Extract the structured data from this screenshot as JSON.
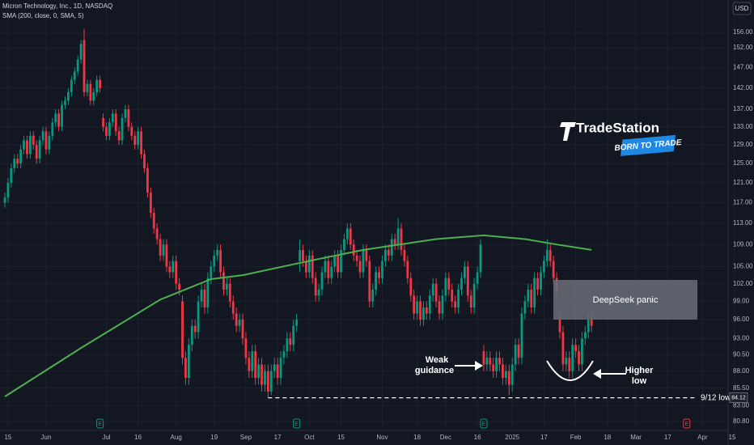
{
  "chart_data": {
    "type": "candlestick",
    "title": "Micron Technology, Inc., 1D, NASDAQ",
    "subtitle": "SMA (200, close, 0, SMA, 5)",
    "currency": "USD",
    "log_scale": true,
    "grid": true,
    "up_color": "#089981",
    "down_color": "#f23645",
    "ylim": [
      79.6,
      164.8
    ],
    "yticks": [
      {
        "value": 156,
        "label": "156.00"
      },
      {
        "value": 152,
        "label": "152.00"
      },
      {
        "value": 147,
        "label": "147.00"
      },
      {
        "value": 142,
        "label": "142.00"
      },
      {
        "value": 137,
        "label": "137.00"
      },
      {
        "value": 133,
        "label": "133.00"
      },
      {
        "value": 129,
        "label": "129.00"
      },
      {
        "value": 125,
        "label": "125.00"
      },
      {
        "value": 121,
        "label": "121.00"
      },
      {
        "value": 117,
        "label": "117.00"
      },
      {
        "value": 113,
        "label": "113.00"
      },
      {
        "value": 109,
        "label": "109.00"
      },
      {
        "value": 105,
        "label": "105.00"
      },
      {
        "value": 102,
        "label": "102.00"
      },
      {
        "value": 99,
        "label": "99.00"
      },
      {
        "value": 96,
        "label": "96.00"
      },
      {
        "value": 93,
        "label": "93.00"
      },
      {
        "value": 90.5,
        "label": "90.50"
      },
      {
        "value": 88,
        "label": "88.00"
      },
      {
        "value": 85.5,
        "label": "85.50"
      },
      {
        "value": 83,
        "label": "83.00"
      },
      {
        "value": 80.8,
        "label": "80.80"
      }
    ],
    "xlim": [
      -1.53,
      228.06
    ],
    "xticks": [
      {
        "value": 1,
        "label": "15"
      },
      {
        "value": 13,
        "label": "Jun"
      },
      {
        "value": 32,
        "label": "Jul"
      },
      {
        "value": 42,
        "label": "16"
      },
      {
        "value": 54,
        "label": "Aug"
      },
      {
        "value": 66,
        "label": "19"
      },
      {
        "value": 76,
        "label": "Sep"
      },
      {
        "value": 86,
        "label": "17"
      },
      {
        "value": 96,
        "label": "Oct"
      },
      {
        "value": 106,
        "label": "15"
      },
      {
        "value": 119,
        "label": "Nov"
      },
      {
        "value": 130,
        "label": "18"
      },
      {
        "value": 139,
        "label": "Dec"
      },
      {
        "value": 149,
        "label": "16"
      },
      {
        "value": 160,
        "label": "2025"
      },
      {
        "value": 170,
        "label": "17"
      },
      {
        "value": 180,
        "label": "Feb"
      },
      {
        "value": 190,
        "label": "18"
      },
      {
        "value": 199,
        "label": "Mar"
      },
      {
        "value": 209,
        "label": "17"
      },
      {
        "value": 220,
        "label": "Apr"
      },
      {
        "value": 230,
        "label": "15"
      }
    ],
    "candles": [
      [
        117,
        119,
        116,
        118
      ],
      [
        118,
        122,
        117,
        121
      ],
      [
        121,
        125,
        120,
        124
      ],
      [
        124,
        127,
        123,
        126
      ],
      [
        126,
        127,
        124,
        125
      ],
      [
        125,
        129,
        124,
        128
      ],
      [
        128,
        131,
        127,
        130
      ],
      [
        130,
        131,
        126,
        127
      ],
      [
        127,
        132,
        126,
        131
      ],
      [
        131,
        132,
        128,
        129
      ],
      [
        129,
        130,
        125,
        126
      ],
      [
        126,
        131,
        125,
        130
      ],
      [
        130,
        133,
        129,
        132
      ],
      [
        132,
        133,
        127,
        128
      ],
      [
        128,
        132,
        127,
        131
      ],
      [
        131,
        135,
        130,
        134
      ],
      [
        134,
        137,
        133,
        136
      ],
      [
        136,
        137,
        132,
        133
      ],
      [
        133,
        139,
        132,
        138
      ],
      [
        138,
        140,
        137,
        139
      ],
      [
        139,
        142,
        138,
        141
      ],
      [
        141,
        145,
        140,
        144
      ],
      [
        144,
        147,
        143,
        146
      ],
      [
        146,
        150,
        145,
        149
      ],
      [
        149,
        154,
        148,
        153
      ],
      [
        154,
        157,
        140,
        141
      ],
      [
        141,
        144,
        140,
        143
      ],
      [
        143,
        144,
        138,
        139
      ],
      [
        139,
        142,
        138,
        141
      ],
      [
        141,
        145,
        140,
        144
      ],
      [
        144,
        145,
        141,
        142
      ],
      [
        135,
        136,
        132,
        133
      ],
      [
        133,
        134,
        130,
        131
      ],
      [
        131,
        135,
        130,
        134
      ],
      [
        134,
        137,
        133,
        136
      ],
      [
        136,
        137,
        131,
        132
      ],
      [
        132,
        133,
        129,
        130
      ],
      [
        130,
        136,
        129,
        135
      ],
      [
        135,
        138,
        134,
        137
      ],
      [
        137,
        138,
        132,
        133
      ],
      [
        133,
        134,
        130,
        131
      ],
      [
        131,
        132,
        128,
        129
      ],
      [
        129,
        133,
        128,
        132
      ],
      [
        132,
        133,
        126,
        127
      ],
      [
        127,
        128,
        123,
        124
      ],
      [
        124,
        125,
        118,
        119
      ],
      [
        119,
        120,
        114,
        115
      ],
      [
        115,
        116,
        111,
        112
      ],
      [
        112,
        113,
        109,
        110
      ],
      [
        110,
        111,
        106,
        107
      ],
      [
        107,
        110,
        106,
        109
      ],
      [
        109,
        110,
        104,
        105
      ],
      [
        105,
        106,
        103,
        104
      ],
      [
        104,
        107,
        103,
        106
      ],
      [
        106,
        107,
        101,
        102
      ],
      [
        102,
        103,
        100,
        101
      ],
      [
        99,
        100,
        89,
        90
      ],
      [
        90,
        91,
        86,
        87
      ],
      [
        87,
        93,
        86,
        92
      ],
      [
        92,
        96,
        91,
        95
      ],
      [
        95,
        96,
        93,
        94
      ],
      [
        94,
        100,
        93,
        99
      ],
      [
        99,
        102,
        98,
        101
      ],
      [
        101,
        102,
        97,
        98
      ],
      [
        98,
        104,
        97,
        103
      ],
      [
        103,
        106,
        102,
        105
      ],
      [
        105,
        108,
        104,
        107
      ],
      [
        107,
        109,
        106,
        108
      ],
      [
        108,
        109,
        103,
        104
      ],
      [
        104,
        105,
        100,
        101
      ],
      [
        101,
        103,
        100,
        102
      ],
      [
        102,
        103,
        98,
        99
      ],
      [
        99,
        100,
        96,
        97
      ],
      [
        97,
        98,
        94,
        95
      ],
      [
        95,
        97,
        94,
        96
      ],
      [
        96,
        97,
        92,
        93
      ],
      [
        93,
        94,
        89,
        90
      ],
      [
        90,
        91,
        87,
        88
      ],
      [
        88,
        92,
        87,
        91
      ],
      [
        91,
        92,
        86,
        87
      ],
      [
        87,
        90,
        86,
        89
      ],
      [
        89,
        90,
        85,
        86
      ],
      [
        86,
        89,
        85,
        88
      ],
      [
        88,
        89,
        84.12,
        85
      ],
      [
        85,
        89,
        84.5,
        88
      ],
      [
        88,
        90,
        87,
        89
      ],
      [
        89,
        90,
        86,
        87
      ],
      [
        87,
        91,
        86,
        90
      ],
      [
        90,
        92,
        89,
        91
      ],
      [
        91,
        94,
        90,
        93
      ],
      [
        93,
        94,
        91,
        92
      ],
      [
        92,
        96,
        91,
        95
      ],
      [
        95,
        97,
        94,
        96
      ],
      [
        106,
        110,
        104,
        108
      ],
      [
        108,
        109,
        105,
        106
      ],
      [
        106,
        107,
        103,
        104
      ],
      [
        104,
        108,
        103,
        107
      ],
      [
        107,
        108,
        102,
        103
      ],
      [
        103,
        104,
        99,
        100
      ],
      [
        100,
        102,
        99,
        101
      ],
      [
        101,
        105,
        100,
        104
      ],
      [
        104,
        107,
        103,
        106
      ],
      [
        106,
        107,
        102,
        103
      ],
      [
        103,
        106,
        102,
        105
      ],
      [
        105,
        108,
        104,
        107
      ],
      [
        107,
        108,
        103,
        104
      ],
      [
        104,
        109,
        103,
        108
      ],
      [
        108,
        111,
        107,
        110
      ],
      [
        110,
        113,
        109,
        112
      ],
      [
        112,
        113,
        108,
        109
      ],
      [
        109,
        110,
        106,
        107
      ],
      [
        107,
        108,
        105,
        106
      ],
      [
        106,
        107,
        103,
        104
      ],
      [
        104,
        109,
        103,
        108
      ],
      [
        108,
        109,
        105,
        106
      ],
      [
        106,
        107,
        98,
        99
      ],
      [
        99,
        102,
        98,
        101
      ],
      [
        101,
        105,
        100,
        104
      ],
      [
        104,
        105,
        102,
        103
      ],
      [
        103,
        107,
        102,
        106
      ],
      [
        106,
        109,
        105,
        108
      ],
      [
        108,
        109,
        106,
        107
      ],
      [
        107,
        111,
        106,
        110
      ],
      [
        110,
        111,
        108,
        109
      ],
      [
        109,
        114,
        108,
        112
      ],
      [
        112,
        113,
        107,
        108
      ],
      [
        108,
        109,
        105,
        106
      ],
      [
        106,
        107,
        102,
        103
      ],
      [
        103,
        104,
        99,
        100
      ],
      [
        100,
        101,
        96,
        97
      ],
      [
        97,
        100,
        96,
        99
      ],
      [
        99,
        100,
        95,
        96
      ],
      [
        96,
        99,
        95,
        98
      ],
      [
        98,
        99,
        96,
        97
      ],
      [
        97,
        101,
        96,
        100
      ],
      [
        100,
        103,
        99,
        102
      ],
      [
        102,
        103,
        98,
        99
      ],
      [
        99,
        100,
        96,
        97
      ],
      [
        97,
        101,
        96,
        100
      ],
      [
        100,
        104,
        99,
        103
      ],
      [
        103,
        104,
        100,
        101
      ],
      [
        101,
        102,
        98,
        99
      ],
      [
        99,
        100,
        97,
        98
      ],
      [
        98,
        102,
        97,
        101
      ],
      [
        101,
        104,
        100,
        103
      ],
      [
        103,
        106,
        102,
        105
      ],
      [
        105,
        106,
        99,
        100
      ],
      [
        100,
        101,
        97,
        98
      ],
      [
        98,
        103,
        97,
        102
      ],
      [
        102,
        105,
        101,
        104
      ],
      [
        104,
        110,
        103,
        109
      ],
      [
        91,
        92,
        88,
        89
      ],
      [
        89,
        91,
        88,
        90
      ],
      [
        90,
        91,
        88,
        89
      ],
      [
        89,
        90,
        87,
        88
      ],
      [
        88,
        91,
        87,
        90
      ],
      [
        90,
        91,
        88,
        89
      ],
      [
        89,
        90,
        86,
        87
      ],
      [
        87,
        89,
        86,
        88
      ],
      [
        88,
        89,
        84.5,
        86
      ],
      [
        86,
        90,
        85,
        89
      ],
      [
        89,
        93,
        88,
        92
      ],
      [
        92,
        93,
        89,
        90
      ],
      [
        90,
        98,
        89,
        97
      ],
      [
        97,
        100,
        96,
        99
      ],
      [
        99,
        102,
        98,
        101
      ],
      [
        101,
        102,
        97,
        98
      ],
      [
        98,
        104,
        97,
        103
      ],
      [
        103,
        104,
        100,
        101
      ],
      [
        101,
        105,
        100,
        104
      ],
      [
        104,
        107,
        103,
        106
      ],
      [
        106,
        110,
        105,
        108
      ],
      [
        108,
        109,
        105,
        106
      ],
      [
        106,
        107,
        102,
        103
      ],
      [
        103,
        104,
        100,
        101
      ],
      [
        96,
        97,
        93,
        94
      ],
      [
        94,
        95,
        88,
        89
      ],
      [
        89,
        91,
        88,
        90
      ],
      [
        90,
        91,
        87,
        88
      ],
      [
        88,
        93,
        87,
        92
      ],
      [
        92,
        93,
        90,
        91
      ],
      [
        91,
        92,
        88,
        89
      ],
      [
        89,
        94,
        88,
        93
      ],
      [
        93,
        95,
        92,
        94
      ],
      [
        94,
        97,
        93,
        96
      ],
      [
        96,
        97,
        94,
        95
      ]
    ],
    "sma": {
      "color": "#4caf50",
      "x": [
        0,
        24,
        49,
        65,
        75,
        95,
        113,
        136,
        151,
        164,
        174,
        185
      ],
      "values": [
        84.3,
        91.5,
        99.3,
        102.8,
        103.5,
        105.9,
        108,
        110,
        110.7,
        110,
        109,
        108
      ]
    },
    "events": {
      "label": "E",
      "x": [
        30,
        92,
        151,
        215
      ],
      "colors": [
        "#089981",
        "#089981",
        "#089981",
        "#f23645"
      ]
    },
    "annotations": {
      "box": "DeepSeek panic",
      "weak": [
        "Weak",
        "guidance"
      ],
      "higher": [
        "Higher",
        "low"
      ],
      "low_label": "9/12 low"
    },
    "logo": {
      "name": "TradeStation",
      "tagline": "BORN TO TRADE"
    }
  }
}
